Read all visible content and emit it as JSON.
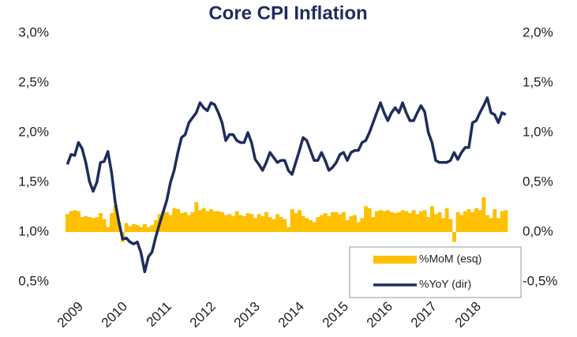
{
  "chart_data": {
    "type": "combo",
    "title": "Core CPI Inflation",
    "categories": [
      "2009",
      null,
      null,
      null,
      null,
      null,
      null,
      null,
      null,
      null,
      null,
      null,
      "2010",
      null,
      null,
      null,
      null,
      null,
      null,
      null,
      null,
      null,
      null,
      null,
      "2011",
      null,
      null,
      null,
      null,
      null,
      null,
      null,
      null,
      null,
      null,
      null,
      "2012",
      null,
      null,
      null,
      null,
      null,
      null,
      null,
      null,
      null,
      null,
      null,
      "2013",
      null,
      null,
      null,
      null,
      null,
      null,
      null,
      null,
      null,
      null,
      null,
      "2014",
      null,
      null,
      null,
      null,
      null,
      null,
      null,
      null,
      null,
      null,
      null,
      "2015",
      null,
      null,
      null,
      null,
      null,
      null,
      null,
      null,
      null,
      null,
      null,
      "2016",
      null,
      null,
      null,
      null,
      null,
      null,
      null,
      null,
      null,
      null,
      null,
      "2017",
      null,
      null,
      null,
      null,
      null,
      null,
      null,
      null,
      null,
      null,
      null,
      "2018",
      null,
      null,
      null,
      null,
      null,
      null,
      null,
      null,
      null,
      null,
      null
    ],
    "series": [
      {
        "name": "%MoM (esq)",
        "type": "bar",
        "axis": "y2",
        "color": "#FFC000",
        "values": [
          0.18,
          0.21,
          0.22,
          0.21,
          0.15,
          0.16,
          0.15,
          0.14,
          0.15,
          0.19,
          0.13,
          0.05,
          0.19,
          0.27,
          0.1,
          -0.1,
          0.09,
          0.06,
          0.08,
          0.07,
          0.05,
          0.08,
          0.05,
          0.07,
          0.12,
          0.18,
          0.21,
          0.2,
          0.17,
          0.24,
          0.23,
          0.19,
          0.2,
          0.17,
          0.2,
          0.3,
          0.22,
          0.24,
          0.21,
          0.23,
          0.21,
          0.21,
          0.2,
          0.17,
          0.18,
          0.16,
          0.21,
          0.17,
          0.16,
          0.19,
          0.18,
          0.14,
          0.18,
          0.16,
          0.2,
          0.15,
          0.13,
          0.18,
          0.15,
          0.13,
          0.05,
          0.23,
          0.19,
          0.22,
          0.16,
          0.14,
          0.12,
          0.1,
          0.15,
          0.17,
          0.19,
          0.16,
          0.2,
          0.2,
          0.18,
          0.2,
          0.12,
          0.16,
          0.17,
          0.1,
          0.14,
          0.26,
          0.24,
          0.15,
          0.21,
          0.22,
          0.21,
          0.22,
          0.2,
          0.19,
          0.2,
          0.22,
          0.21,
          0.19,
          0.22,
          0.18,
          0.21,
          0.22,
          0.15,
          0.26,
          0.18,
          0.2,
          0.14,
          0.24,
          0.13,
          -0.1,
          0.2,
          0.17,
          0.21,
          0.23,
          0.2,
          0.24,
          0.22,
          0.35,
          0.17,
          0.14,
          0.23,
          0.14,
          0.21,
          0.22
        ]
      },
      {
        "name": "%YoY (dir)",
        "type": "line",
        "color": "#1F2D5C",
        "values": [
          1.68,
          1.78,
          1.77,
          1.9,
          1.84,
          1.7,
          1.51,
          1.41,
          1.5,
          1.7,
          1.71,
          1.81,
          1.6,
          1.3,
          1.1,
          0.93,
          0.94,
          0.9,
          0.88,
          0.9,
          0.79,
          0.6,
          0.75,
          0.8,
          0.95,
          1.08,
          1.2,
          1.32,
          1.5,
          1.62,
          1.8,
          1.95,
          1.98,
          2.1,
          2.15,
          2.2,
          2.3,
          2.25,
          2.22,
          2.3,
          2.28,
          2.2,
          2.1,
          1.92,
          1.98,
          1.98,
          1.92,
          1.9,
          1.9,
          2.0,
          1.9,
          1.73,
          1.68,
          1.62,
          1.7,
          1.8,
          1.75,
          1.7,
          1.72,
          1.72,
          1.62,
          1.58,
          1.7,
          1.82,
          1.95,
          1.92,
          1.82,
          1.72,
          1.72,
          1.8,
          1.72,
          1.62,
          1.65,
          1.7,
          1.78,
          1.8,
          1.72,
          1.8,
          1.82,
          1.82,
          1.9,
          1.92,
          2.0,
          2.1,
          2.2,
          2.3,
          2.2,
          2.12,
          2.2,
          2.25,
          2.2,
          2.3,
          2.2,
          2.12,
          2.12,
          2.2,
          2.27,
          2.21,
          2.0,
          1.9,
          1.72,
          1.7,
          1.7,
          1.7,
          1.72,
          1.8,
          1.73,
          1.8,
          1.85,
          1.85,
          2.1,
          2.12,
          2.2,
          2.27,
          2.35,
          2.2,
          2.18,
          2.1,
          2.2,
          2.18
        ]
      }
    ],
    "ylim": [
      0.5,
      3.0
    ],
    "yticks": [
      {
        "value": 3.0,
        "label": "3,0%"
      },
      {
        "value": 2.5,
        "label": "2,5%"
      },
      {
        "value": 2.0,
        "label": "2,0%"
      },
      {
        "value": 1.5,
        "label": "1,5%"
      },
      {
        "value": 1.0,
        "label": "1,0%"
      },
      {
        "value": 0.5,
        "label": "0,5%"
      }
    ],
    "y2lim": [
      -0.5,
      2.0
    ],
    "y2ticks": [
      {
        "value": 2.0,
        "label": "2,0%"
      },
      {
        "value": 1.5,
        "label": "1,5%"
      },
      {
        "value": 1.0,
        "label": "1,0%"
      },
      {
        "value": 0.5,
        "label": "0,5%"
      },
      {
        "value": 0.0,
        "label": "0,0%"
      },
      {
        "value": -0.5,
        "label": "-0,5%"
      }
    ],
    "legend": "lower right"
  }
}
